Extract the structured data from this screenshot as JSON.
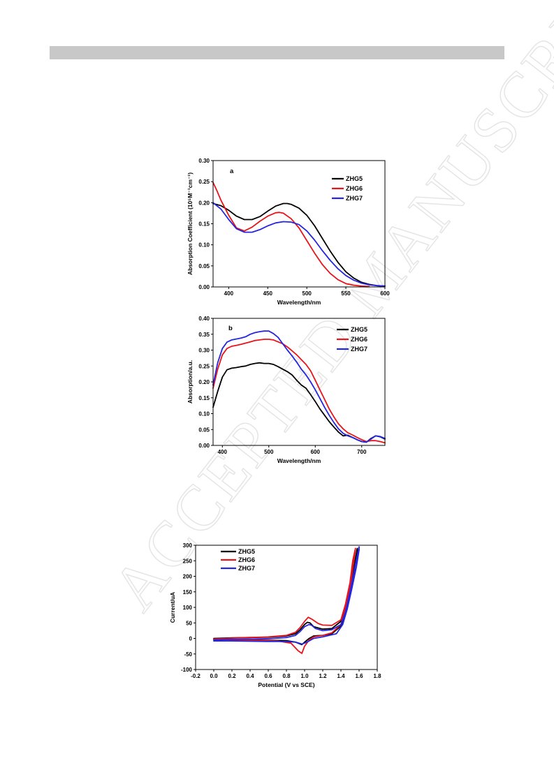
{
  "page": {
    "watermark": "ACCEPTED MANUSCRIPT"
  },
  "colors": {
    "ZHG5": "#000000",
    "ZHG6": "#e8141a",
    "ZHG7": "#2426e0"
  },
  "chart_data": [
    {
      "id": "a",
      "type": "line",
      "panel_label": "a",
      "xlabel": "Wavelength/nm",
      "ylabel": "Absorption Coefficient (10⁵M⁻¹cm⁻¹)",
      "xlim": [
        380,
        600
      ],
      "ylim": [
        0,
        0.3
      ],
      "xticks": [
        400,
        450,
        500,
        550,
        600
      ],
      "yticks": [
        0,
        0.05,
        0.1,
        0.15,
        0.2,
        0.25,
        0.3
      ],
      "yticklabels": [
        "0.00",
        "0.05",
        "0.10",
        "0.15",
        "0.20",
        "0.25",
        "0.30"
      ],
      "legend_position": "top-right",
      "series": [
        {
          "name": "ZHG5",
          "x": [
            380,
            390,
            400,
            410,
            420,
            430,
            440,
            450,
            460,
            470,
            475,
            480,
            490,
            500,
            510,
            520,
            530,
            540,
            550,
            560,
            570,
            580,
            590,
            600
          ],
          "y": [
            0.198,
            0.193,
            0.182,
            0.168,
            0.16,
            0.16,
            0.167,
            0.18,
            0.192,
            0.198,
            0.198,
            0.196,
            0.187,
            0.17,
            0.145,
            0.115,
            0.085,
            0.058,
            0.036,
            0.021,
            0.011,
            0.006,
            0.003,
            0.002
          ]
        },
        {
          "name": "ZHG6",
          "x": [
            380,
            385,
            390,
            400,
            410,
            420,
            430,
            440,
            450,
            460,
            465,
            470,
            480,
            490,
            500,
            510,
            520,
            530,
            540,
            550,
            560,
            570,
            580
          ],
          "y": [
            0.248,
            0.228,
            0.206,
            0.17,
            0.14,
            0.133,
            0.142,
            0.156,
            0.168,
            0.176,
            0.177,
            0.175,
            0.162,
            0.14,
            0.11,
            0.08,
            0.053,
            0.032,
            0.017,
            0.008,
            0.004,
            0.002,
            0.001
          ]
        },
        {
          "name": "ZHG7",
          "x": [
            380,
            390,
            400,
            410,
            420,
            430,
            440,
            450,
            460,
            470,
            480,
            490,
            500,
            510,
            520,
            530,
            540,
            550,
            560,
            570,
            580,
            590,
            600
          ],
          "y": [
            0.2,
            0.185,
            0.16,
            0.138,
            0.13,
            0.13,
            0.136,
            0.145,
            0.152,
            0.155,
            0.154,
            0.148,
            0.133,
            0.111,
            0.086,
            0.063,
            0.043,
            0.027,
            0.016,
            0.009,
            0.005,
            0.003,
            0.002
          ]
        }
      ]
    },
    {
      "id": "b",
      "type": "line",
      "panel_label": "b",
      "xlabel": "Wavelength/nm",
      "ylabel": "Absorption/a.u.",
      "xlim": [
        380,
        750
      ],
      "ylim": [
        0,
        0.4
      ],
      "xticks": [
        400,
        500,
        600,
        700
      ],
      "yticks": [
        0,
        0.05,
        0.1,
        0.15,
        0.2,
        0.25,
        0.3,
        0.35,
        0.4
      ],
      "yticklabels": [
        "0.00",
        "0.05",
        "0.10",
        "0.15",
        "0.20",
        "0.25",
        "0.30",
        "0.35",
        "0.40"
      ],
      "legend_position": "top-right",
      "series": [
        {
          "name": "ZHG5",
          "x": [
            380,
            390,
            400,
            410,
            420,
            430,
            440,
            450,
            460,
            470,
            480,
            490,
            500,
            510,
            520,
            530,
            540,
            550,
            560,
            570,
            580,
            590,
            600,
            610,
            620,
            630,
            640,
            650,
            660,
            670,
            680,
            690,
            700,
            710,
            720,
            730,
            740,
            750
          ],
          "y": [
            0.12,
            0.17,
            0.215,
            0.238,
            0.243,
            0.245,
            0.248,
            0.25,
            0.255,
            0.258,
            0.26,
            0.258,
            0.258,
            0.255,
            0.248,
            0.24,
            0.232,
            0.222,
            0.205,
            0.19,
            0.18,
            0.16,
            0.138,
            0.115,
            0.095,
            0.075,
            0.058,
            0.042,
            0.03,
            0.032,
            0.025,
            0.018,
            0.012,
            0.01,
            0.022,
            0.03,
            0.027,
            0.02
          ]
        },
        {
          "name": "ZHG6",
          "x": [
            380,
            390,
            400,
            410,
            420,
            430,
            440,
            450,
            460,
            470,
            480,
            490,
            500,
            510,
            520,
            530,
            540,
            550,
            560,
            570,
            580,
            590,
            600,
            610,
            620,
            630,
            640,
            650,
            660,
            670,
            680,
            690,
            700,
            710,
            720,
            730,
            740,
            750
          ],
          "y": [
            0.18,
            0.24,
            0.285,
            0.305,
            0.312,
            0.315,
            0.318,
            0.322,
            0.326,
            0.33,
            0.332,
            0.334,
            0.334,
            0.332,
            0.326,
            0.32,
            0.31,
            0.298,
            0.285,
            0.27,
            0.255,
            0.235,
            0.205,
            0.175,
            0.145,
            0.115,
            0.09,
            0.068,
            0.052,
            0.04,
            0.033,
            0.025,
            0.018,
            0.012,
            0.015,
            0.015,
            0.012,
            0.008
          ]
        },
        {
          "name": "ZHG7",
          "x": [
            380,
            390,
            400,
            410,
            420,
            430,
            440,
            450,
            460,
            470,
            480,
            490,
            500,
            510,
            520,
            530,
            540,
            550,
            560,
            570,
            580,
            590,
            600,
            610,
            620,
            630,
            640,
            650,
            660,
            670,
            680,
            690,
            700,
            710,
            720,
            730,
            740,
            750
          ],
          "y": [
            0.19,
            0.26,
            0.305,
            0.325,
            0.332,
            0.335,
            0.338,
            0.342,
            0.35,
            0.355,
            0.358,
            0.36,
            0.36,
            0.352,
            0.34,
            0.32,
            0.3,
            0.282,
            0.262,
            0.24,
            0.222,
            0.2,
            0.175,
            0.148,
            0.12,
            0.095,
            0.072,
            0.052,
            0.038,
            0.03,
            0.025,
            0.018,
            0.012,
            0.01,
            0.02,
            0.03,
            0.028,
            0.022
          ]
        }
      ]
    },
    {
      "id": "c",
      "type": "line",
      "panel_label": "",
      "xlabel": "Potential (V vs SCE)",
      "ylabel": "Current/uA",
      "xlim": [
        -0.2,
        1.8
      ],
      "ylim": [
        -100,
        300
      ],
      "xticks": [
        -0.2,
        0,
        0.2,
        0.4,
        0.6,
        0.8,
        1.0,
        1.2,
        1.4,
        1.6,
        1.8
      ],
      "xticklabels": [
        "-0.2",
        "0.0",
        "0.2",
        "0.4",
        "0.6",
        "0.8",
        "1.0",
        "1.2",
        "1.4",
        "1.6",
        "1.8"
      ],
      "yticks": [
        -100,
        -50,
        0,
        50,
        100,
        150,
        200,
        250,
        300
      ],
      "yticklabels": [
        "-100",
        "-50",
        "0",
        "50",
        "100",
        "150",
        "200",
        "250",
        "300"
      ],
      "legend_position": "top-left",
      "series": [
        {
          "name": "ZHG5",
          "x": [
            0,
            0.2,
            0.4,
            0.6,
            0.8,
            0.9,
            0.95,
            1.0,
            1.03,
            1.06,
            1.1,
            1.2,
            1.3,
            1.4,
            1.45,
            1.5,
            1.55,
            1.58,
            1.58,
            1.55,
            1.5,
            1.45,
            1.4,
            1.3,
            1.2,
            1.1,
            1.05,
            1.0,
            0.97,
            0.9,
            0.8,
            0.6,
            0.4,
            0.2,
            0
          ],
          "y": [
            0,
            2,
            3,
            4,
            8,
            15,
            28,
            45,
            52,
            50,
            38,
            30,
            32,
            55,
            100,
            170,
            240,
            290,
            280,
            220,
            150,
            85,
            40,
            15,
            10,
            8,
            0,
            -12,
            -20,
            -12,
            -7,
            -6,
            -5,
            -4,
            -3
          ]
        },
        {
          "name": "ZHG6",
          "x": [
            0,
            0.2,
            0.4,
            0.6,
            0.8,
            0.9,
            0.95,
            1.0,
            1.04,
            1.08,
            1.15,
            1.2,
            1.3,
            1.4,
            1.45,
            1.5,
            1.53,
            1.56,
            1.56,
            1.53,
            1.5,
            1.45,
            1.4,
            1.3,
            1.2,
            1.1,
            1.05,
            1.0,
            0.97,
            0.93,
            0.85,
            0.7,
            0.5,
            0.3,
            0.1,
            0
          ],
          "y": [
            -2,
            1,
            3,
            5,
            10,
            20,
            35,
            55,
            68,
            62,
            48,
            43,
            42,
            60,
            110,
            180,
            250,
            290,
            285,
            225,
            160,
            95,
            45,
            18,
            10,
            5,
            -5,
            -25,
            -48,
            -40,
            -15,
            -8,
            -6,
            -5,
            -4,
            -3
          ]
        },
        {
          "name": "ZHG7",
          "x": [
            0,
            0.2,
            0.4,
            0.6,
            0.8,
            0.9,
            0.95,
            1.0,
            1.05,
            1.08,
            1.12,
            1.2,
            1.3,
            1.4,
            1.45,
            1.5,
            1.55,
            1.6,
            1.6,
            1.57,
            1.52,
            1.47,
            1.42,
            1.35,
            1.2,
            1.1,
            1.05,
            1.0,
            0.97,
            0.9,
            0.8,
            0.6,
            0.4,
            0.2,
            0
          ],
          "y": [
            -5,
            -3,
            -2,
            -1,
            3,
            10,
            22,
            38,
            45,
            42,
            32,
            25,
            28,
            45,
            85,
            150,
            225,
            295,
            285,
            230,
            160,
            95,
            45,
            15,
            5,
            0,
            -8,
            -15,
            -18,
            -12,
            -10,
            -10,
            -9,
            -8,
            -8
          ]
        }
      ]
    }
  ]
}
